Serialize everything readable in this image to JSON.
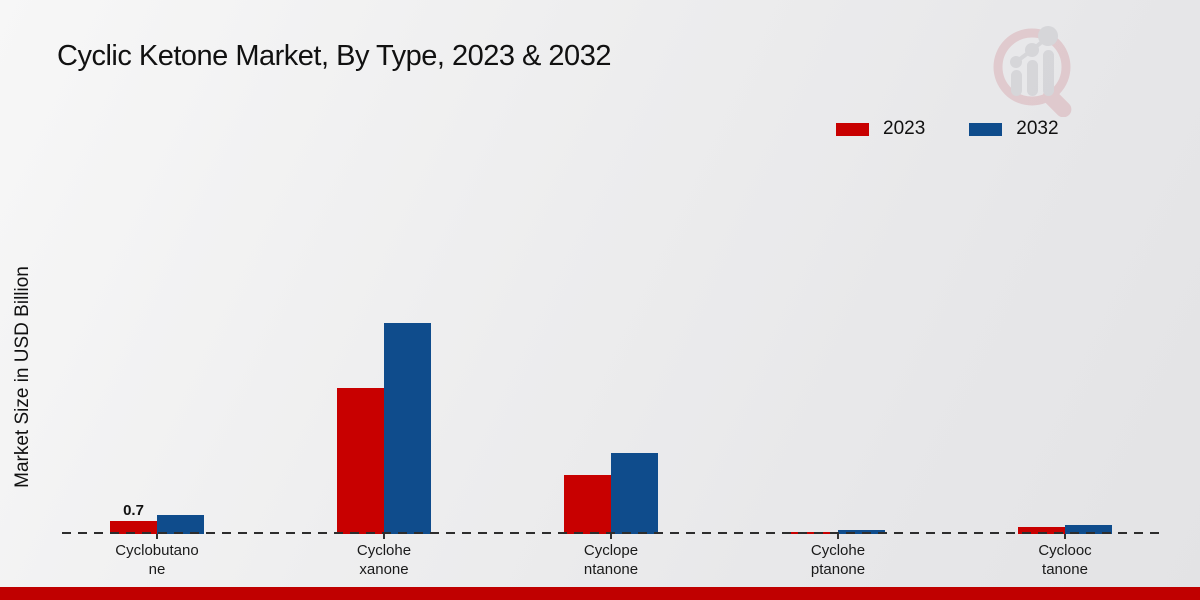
{
  "page": {
    "footer_color": "#c00000",
    "background_color": "#ececee"
  },
  "logo": {
    "name": "market-research-future-watermark",
    "ring_color": "#d49aa2",
    "bars_color": "#b9b9c0"
  },
  "chart_data": {
    "type": "bar",
    "title": "Cyclic Ketone Market, By Type, 2023 & 2032",
    "ylabel": "Market Size in USD Billion",
    "xlabel": "",
    "categories": [
      "Cyclobutanone",
      "Cyclohexanone",
      "Cyclopentanone",
      "Cycloheptanone",
      "Cyclooctanone"
    ],
    "category_label_lines": [
      [
        "Cyclobutano",
        "ne"
      ],
      [
        "Cyclohe",
        "xanone"
      ],
      [
        "Cyclope",
        "ntanone"
      ],
      [
        "Cyclohe",
        "ptanone"
      ],
      [
        "Cyclooc",
        "tanone"
      ]
    ],
    "series": [
      {
        "name": "2023",
        "color": "#c80000",
        "values": [
          0.7,
          7.7,
          3.1,
          0.1,
          0.35
        ]
      },
      {
        "name": "2032",
        "color": "#0f4c8c",
        "values": [
          1.0,
          11.1,
          4.25,
          0.2,
          0.5
        ]
      }
    ],
    "annotations": [
      {
        "text": "0.7",
        "category_index": 0,
        "series_index": 0
      }
    ],
    "ylim": [
      0,
      12
    ],
    "grid": false,
    "legend_position": "top-right",
    "axis_style": "dashed-baseline"
  }
}
